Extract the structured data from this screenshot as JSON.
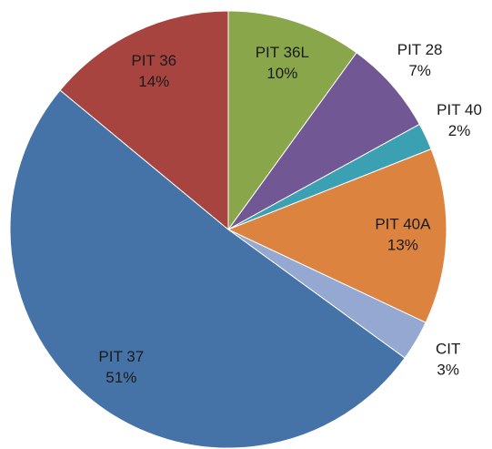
{
  "chart_data": {
    "type": "pie",
    "categories": [
      "PIT 36L",
      "PIT 28",
      "PIT 40",
      "PIT 40A",
      "CIT",
      "PIT 37",
      "PIT 36"
    ],
    "values": [
      10,
      7,
      2,
      13,
      3,
      51,
      14
    ],
    "value_labels": [
      "10%",
      "7%",
      "2%",
      "13%",
      "3%",
      "51%",
      "14%"
    ],
    "colors": [
      "#8aa64a",
      "#715894",
      "#3ca0b3",
      "#dc843f",
      "#94a8d2",
      "#4572a7",
      "#a8443f"
    ]
  }
}
